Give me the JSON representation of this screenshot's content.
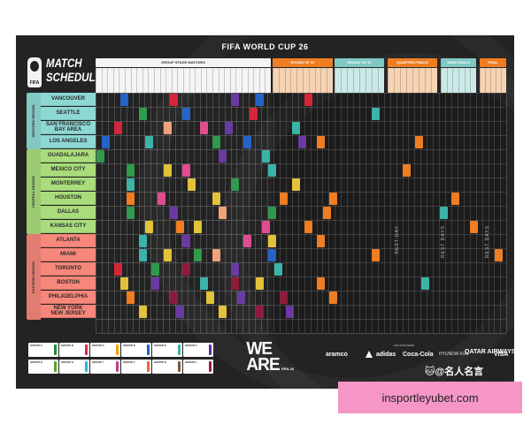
{
  "poster": {
    "title": "FIFA WORLD CUP 26",
    "schedule_title": "MATCH\nSCHEDULE",
    "logo_text": "FIFA"
  },
  "phases": [
    {
      "label": "GROUP STAGE MATCHES",
      "color": "#f4f4f4",
      "text_color": "#333333"
    },
    {
      "label": "ROUND OF 32",
      "color": "#ef7d22",
      "text_color": "#ffffff"
    },
    {
      "label": "ROUND OF 16",
      "color": "#7fc8c4",
      "text_color": "#ffffff"
    },
    {
      "label": "QUARTER-FINALS",
      "color": "#ef7d22",
      "text_color": "#ffffff"
    },
    {
      "label": "SEMI-FINALS",
      "color": "#7fc8c4",
      "text_color": "#ffffff"
    },
    {
      "label": "FINAL",
      "color": "#ef7d22",
      "text_color": "#ffffff"
    }
  ],
  "regions": [
    {
      "name": "WESTERN REGION",
      "color": "#8ed8d4",
      "cities": [
        "VANCOUVER",
        "SEATTLE",
        "SAN FRANCISCO\nBAY AREA",
        "LOS ANGELES"
      ]
    },
    {
      "name": "CENTRAL REGION",
      "color": "#a9dc7b",
      "cities": [
        "GUADALAJARA",
        "MEXICO CITY",
        "MONTERREY",
        "HOUSTON",
        "DALLAS",
        "KANSAS CITY"
      ]
    },
    {
      "name": "EASTERN REGION",
      "color": "#f7877a",
      "cities": [
        "ATLANTA",
        "MIAMI",
        "TORONTO",
        "BOSTON",
        "PHILADELPHIA",
        "NEW YORK\nNEW JERSEY"
      ]
    }
  ],
  "rest_days": [
    "REST DAY",
    "REST DAYS",
    "REST DAYS"
  ],
  "groups": [
    "GROUP A",
    "GROUP B",
    "GROUP C",
    "GROUP D",
    "GROUP E",
    "GROUP F",
    "GROUP G",
    "GROUP H",
    "GROUP I",
    "GROUP J",
    "GROUP K",
    "GROUP L"
  ],
  "group_colors": [
    "#1e8a3c",
    "#e8243c",
    "#f2a400",
    "#1f62c0",
    "#3fb0a8",
    "#5c2b9d",
    "#5a9f2c",
    "#2db3e0",
    "#c23a8b",
    "#e8663c",
    "#7a5a3a",
    "#9b1e3c"
  ],
  "chip_colors": {
    "purple": "#6a3aa2",
    "red": "#d3263b",
    "teal": "#3bb3a8",
    "green": "#2f9a4c",
    "yellow": "#e2c23a",
    "blue": "#2563c7",
    "pink": "#e04d8f",
    "orange": "#ef7d22",
    "maroon": "#8d1c3c",
    "peach": "#f0a37b"
  },
  "branding": {
    "we_are": "WE\nARE",
    "we_are_sub": "FIFA 26",
    "sponsors_label": "FIFA PARTNERS"
  },
  "sponsors": [
    "aramco",
    "adidas",
    "Coca-Cola",
    "HYUNDAI KIA",
    "QATAR AIRWAYS",
    "VISA"
  ],
  "watermark": "🐱@名人名言",
  "url_banner": "insportleyubet.com"
}
